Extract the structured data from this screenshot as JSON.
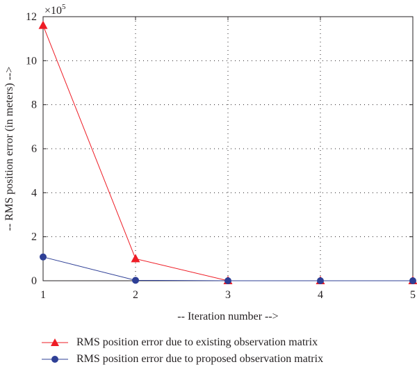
{
  "chart_data": {
    "type": "line",
    "x": [
      1,
      2,
      3,
      4,
      5
    ],
    "series": [
      {
        "name": "RMS position error due to existing observation matrix",
        "values": [
          11.6,
          1.0,
          0.0,
          0.0,
          0.0
        ],
        "color": "#ee1c25",
        "marker": "triangle"
      },
      {
        "name": "RMS position error due to proposed observation matrix",
        "values": [
          1.08,
          0.02,
          0.0,
          0.0,
          0.0
        ],
        "color": "#2e3f96",
        "marker": "circle"
      }
    ],
    "xlabel": "-- Iteration number -->",
    "ylabel": "-- RMS position error (in meters) -->",
    "y_multiplier": "×10",
    "y_multiplier_exp": "5",
    "xlim": [
      1,
      5
    ],
    "ylim": [
      0,
      12
    ],
    "xticks": [
      1,
      2,
      3,
      4,
      5
    ],
    "yticks": [
      0,
      2,
      4,
      6,
      8,
      10,
      12
    ],
    "grid": true,
    "grid_style": "dotted",
    "legend_position": "bottom"
  }
}
